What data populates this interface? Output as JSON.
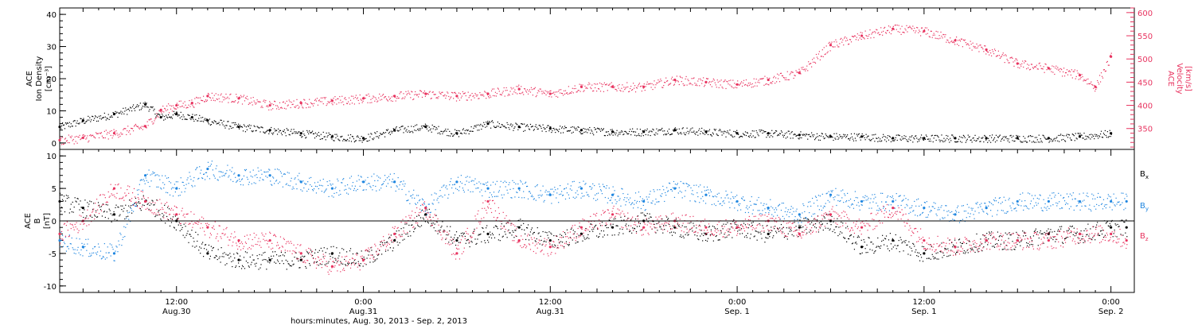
{
  "colors": {
    "density": "#000000",
    "velocity": "#e8335f",
    "bx": "#000000",
    "by": "#1f86e0",
    "bz": "#e8335f"
  },
  "chart_data": [
    {
      "type": "scatter",
      "panel": "top",
      "ylabel_left": [
        "ACE",
        "Ion Density",
        "[cm⁻³]"
      ],
      "ylabel_right": [
        "ACE",
        "Velocity",
        "[km/s]"
      ],
      "ylim_left": [
        -2,
        42
      ],
      "yticks_left": [
        "0",
        "10",
        "20",
        "30",
        "40"
      ],
      "ylim_right": [
        305,
        610
      ],
      "yticks_right": [
        "350",
        "400",
        "450",
        "500",
        "550",
        "600"
      ],
      "xlim_hours": [
        4.5,
        73.5
      ],
      "grid": false,
      "series": [
        {
          "key": "density",
          "axis": "left",
          "x": [
            4.5,
            6,
            8,
            10,
            11,
            12,
            13,
            14,
            16,
            18,
            20,
            22,
            24,
            26,
            28,
            30,
            32,
            34,
            36,
            38,
            40,
            42,
            44,
            46,
            48,
            50,
            52,
            54,
            56,
            58,
            60,
            62,
            64,
            66,
            68,
            70,
            72
          ],
          "y": [
            5,
            7,
            9,
            12,
            8,
            9,
            8,
            7,
            5,
            4,
            3,
            2,
            1.5,
            4,
            5,
            3,
            6,
            5,
            4.5,
            4,
            3.5,
            3.5,
            4,
            3.5,
            3,
            3,
            2.5,
            2,
            2,
            1.5,
            1.5,
            1.5,
            1.5,
            1.5,
            1.5,
            2,
            3
          ]
        },
        {
          "key": "velocity",
          "axis": "right",
          "x": [
            4.5,
            6,
            8,
            10,
            11,
            12,
            13,
            14,
            16,
            18,
            20,
            22,
            24,
            26,
            28,
            30,
            32,
            34,
            36,
            38,
            40,
            42,
            44,
            46,
            48,
            50,
            52,
            54,
            56,
            58,
            60,
            62,
            64,
            66,
            68,
            70,
            71,
            72
          ],
          "y": [
            325,
            330,
            340,
            355,
            390,
            400,
            405,
            420,
            415,
            400,
            405,
            410,
            415,
            420,
            425,
            420,
            425,
            435,
            425,
            440,
            440,
            440,
            455,
            450,
            445,
            455,
            470,
            530,
            550,
            565,
            560,
            540,
            520,
            490,
            480,
            465,
            440,
            505
          ]
        }
      ]
    },
    {
      "type": "scatter",
      "panel": "bottom",
      "ylabel": [
        "ACE",
        "B",
        "[nT]"
      ],
      "ylim": [
        -11,
        11
      ],
      "yticks": [
        "-10",
        "-5",
        "0",
        "5",
        "10"
      ],
      "xlim_hours": [
        4.5,
        73.5
      ],
      "zero_line": true,
      "grid": false,
      "x_tick_labels": [
        {
          "hour": 12,
          "time": "12:00",
          "date": "Aug.30"
        },
        {
          "hour": 24,
          "time": "0:00",
          "date": "Aug.31"
        },
        {
          "hour": 36,
          "time": "12:00",
          "date": "Aug.31"
        },
        {
          "hour": 48,
          "time": "0:00",
          "date": "Sep. 1"
        },
        {
          "hour": 60,
          "time": "12:00",
          "date": "Sep. 1"
        },
        {
          "hour": 72,
          "time": "0:00",
          "date": "Sep. 2"
        }
      ],
      "xlabel": "hours:minutes, Aug. 30, 2013 - Sep. 2, 2013",
      "legend": [
        "B",
        "B",
        "B"
      ],
      "legend_subscripts": [
        "x",
        "y",
        "z"
      ],
      "series": [
        {
          "key": "bx",
          "x": [
            4.5,
            6,
            8,
            10,
            12,
            14,
            16,
            18,
            20,
            22,
            24,
            26,
            28,
            30,
            32,
            34,
            36,
            38,
            40,
            42,
            44,
            46,
            48,
            50,
            52,
            54,
            56,
            58,
            60,
            62,
            64,
            66,
            68,
            70,
            72,
            73
          ],
          "y": [
            3,
            2,
            1,
            3,
            0,
            -5,
            -6,
            -6,
            -6,
            -5,
            -6,
            -3,
            1,
            -3,
            -2,
            -1,
            -3,
            -2,
            -1,
            0,
            -1,
            -2,
            -1,
            -2,
            -1,
            0,
            -4,
            -3,
            -5,
            -4,
            -3,
            -3,
            -2,
            -2,
            -1,
            -1
          ]
        },
        {
          "key": "by",
          "x": [
            4.5,
            6,
            8,
            10,
            12,
            14,
            16,
            18,
            20,
            22,
            24,
            26,
            28,
            30,
            32,
            34,
            36,
            38,
            40,
            42,
            44,
            46,
            48,
            50,
            52,
            54,
            56,
            58,
            60,
            62,
            64,
            66,
            68,
            70,
            72,
            73
          ],
          "y": [
            -3,
            -4,
            -5,
            7,
            5,
            8,
            7,
            7,
            6,
            5,
            6,
            6,
            2,
            6,
            5,
            5,
            4,
            5,
            4,
            3,
            5,
            4,
            3,
            2,
            1,
            4,
            3,
            3,
            2,
            1,
            2,
            3,
            3,
            3,
            3,
            3
          ]
        },
        {
          "key": "bz",
          "x": [
            4.5,
            6,
            8,
            10,
            12,
            14,
            16,
            18,
            20,
            22,
            24,
            26,
            28,
            30,
            32,
            34,
            36,
            38,
            40,
            42,
            44,
            46,
            48,
            50,
            52,
            54,
            56,
            58,
            60,
            62,
            64,
            66,
            68,
            70,
            72,
            73
          ],
          "y": [
            -2,
            0,
            5,
            3,
            1,
            -1,
            -3,
            -3,
            -5,
            -7,
            -6,
            -2,
            2,
            -5,
            3,
            -3,
            -4,
            -1,
            1,
            -1,
            0,
            -1,
            -1,
            0,
            -2,
            1,
            -1,
            2,
            -3,
            -4,
            -3,
            -3,
            -3,
            -2,
            -2,
            -3
          ]
        }
      ]
    }
  ]
}
